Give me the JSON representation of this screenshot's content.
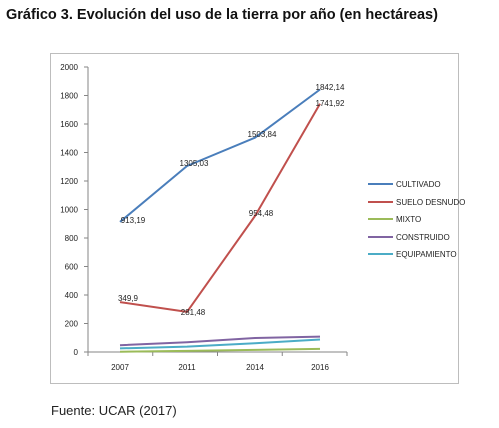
{
  "title": "Gráfico 3. Evolución del uso de la tierra por año (en hectáreas)",
  "source": "Fuente: UCAR (2017)",
  "chart_data": {
    "type": "line",
    "x": [
      "2007",
      "2011",
      "2014",
      "2016"
    ],
    "ylim": [
      0,
      2000
    ],
    "yticks": [
      0,
      200,
      400,
      600,
      800,
      1000,
      1200,
      1400,
      1600,
      1800,
      2000
    ],
    "ytick_labels": [
      "0",
      "200",
      "400",
      "600",
      "800",
      "1000",
      "1200",
      "1400",
      "1600",
      "1800",
      "2000"
    ],
    "legend_position": "right",
    "grid": false,
    "series": [
      {
        "name": "CULTIVADO",
        "color": "#4a7ebb",
        "values": [
          913.19,
          1305.03,
          1503.84,
          1842.14
        ],
        "labels": [
          "913,19",
          "1305,03",
          "1503,84",
          "1842,14"
        ]
      },
      {
        "name": "SUELO DESNUDO",
        "color": "#c0504d",
        "values": [
          349.9,
          281.48,
          954.48,
          1741.92
        ],
        "labels": [
          "349,9",
          "281,48",
          "954,48",
          "1741,92"
        ]
      },
      {
        "name": "MIXTO",
        "color": "#9bbb59",
        "values": [
          2,
          8,
          15,
          22
        ],
        "labels": []
      },
      {
        "name": "CONSTRUIDO",
        "color": "#8064a2",
        "values": [
          48,
          68,
          98,
          108
        ],
        "labels": []
      },
      {
        "name": "EQUIPAMIENTO",
        "color": "#4bacc6",
        "values": [
          25,
          38,
          62,
          88
        ],
        "labels": []
      }
    ]
  }
}
